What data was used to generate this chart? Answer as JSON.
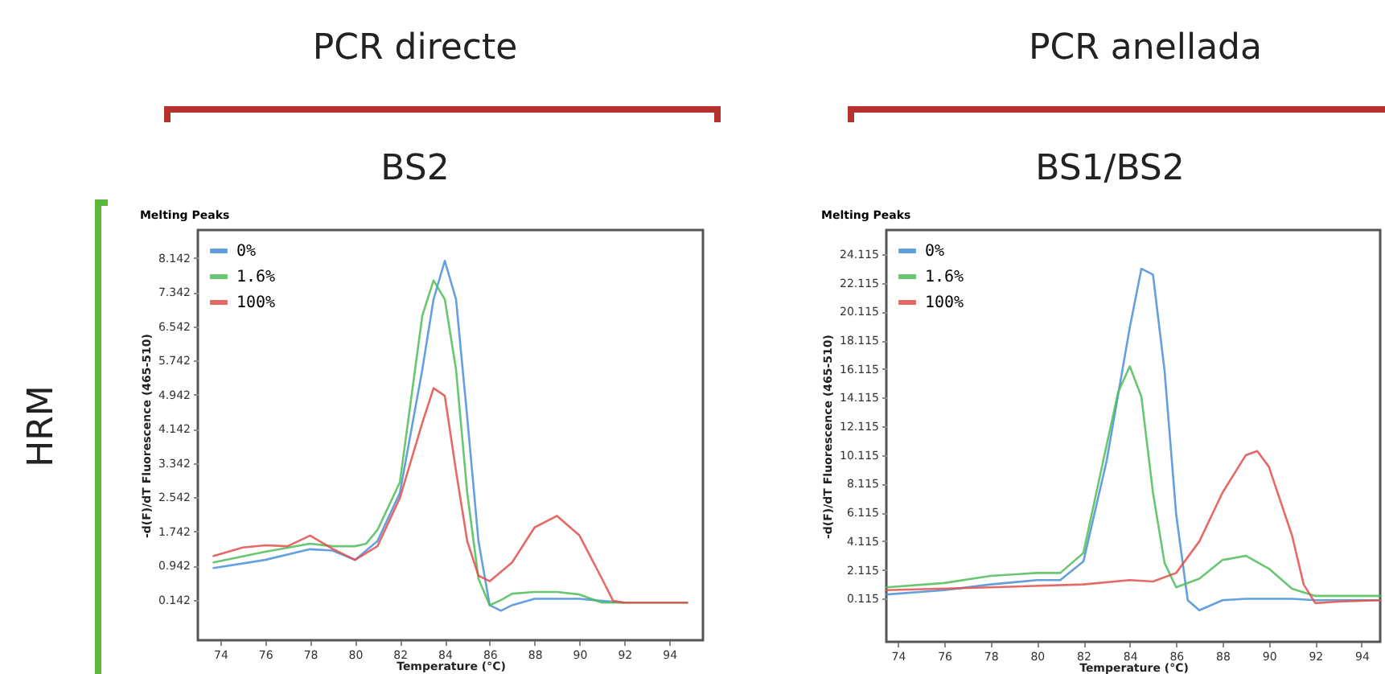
{
  "chart_data": [
    {
      "type": "line",
      "title": "Melting Peaks",
      "xlabel": "Temperature (°C)",
      "ylabel": "-d(F)/dT Fluorescence (465-510)",
      "annotations": [
        "PCR directe",
        "BS2",
        "HRM"
      ],
      "xlim": [
        73,
        95.5
      ],
      "ylim": [
        -0.8,
        8.8
      ],
      "xticks": [
        74,
        76,
        78,
        80,
        82,
        84,
        86,
        88,
        90,
        92,
        94
      ],
      "yticks": [
        0.142,
        0.942,
        1.742,
        2.542,
        3.342,
        4.142,
        4.942,
        5.742,
        6.542,
        7.342,
        8.142
      ],
      "legend": "top left",
      "series": [
        {
          "name": "0%",
          "color": "#4a8fd8",
          "x": [
            73.7,
            76,
            78,
            79,
            80,
            81,
            82,
            83,
            83.5,
            84,
            84.5,
            85,
            85.5,
            86,
            86.5,
            87,
            88,
            89,
            90,
            91,
            92
          ],
          "values": [
            0.89,
            1.08,
            1.33,
            1.3,
            1.08,
            1.52,
            2.65,
            5.54,
            7.18,
            8.08,
            7.18,
            4.41,
            1.52,
            0.02,
            -0.11,
            0.02,
            0.17,
            0.17,
            0.17,
            0.12,
            0.08
          ]
        },
        {
          "name": "1.6%",
          "color": "#4dbd57",
          "x": [
            73.7,
            76,
            78,
            79,
            80,
            80.5,
            81,
            82,
            83,
            83.5,
            84,
            84.5,
            85,
            85.5,
            86,
            86.5,
            87,
            88,
            89,
            90,
            91,
            92,
            94.8
          ],
          "values": [
            1.02,
            1.27,
            1.46,
            1.4,
            1.4,
            1.46,
            1.78,
            2.9,
            6.8,
            7.62,
            7.18,
            5.54,
            2.65,
            0.64,
            0.02,
            0.14,
            0.29,
            0.33,
            0.33,
            0.27,
            0.08,
            0.08,
            0.08
          ]
        },
        {
          "name": "100%",
          "color": "#e0504c",
          "x": [
            73.7,
            75,
            76,
            77,
            78,
            79,
            80,
            81,
            82,
            83,
            83.5,
            84,
            84.5,
            85,
            85.5,
            86,
            87,
            88,
            89,
            90,
            91,
            91.5,
            92,
            94.8
          ],
          "values": [
            1.17,
            1.37,
            1.42,
            1.4,
            1.65,
            1.34,
            1.08,
            1.4,
            2.53,
            4.29,
            5.1,
            4.92,
            3.16,
            1.52,
            0.71,
            0.58,
            1.02,
            1.84,
            2.11,
            1.65,
            0.64,
            0.12,
            0.08,
            0.08
          ]
        }
      ]
    },
    {
      "type": "line",
      "title": "Melting Peaks",
      "xlabel": "Temperature (°C)",
      "ylabel": "-d(F)/dT Fluorescence (465-510)",
      "annotations": [
        "PCR anellada",
        "BS1/BS2"
      ],
      "xlim": [
        73.5,
        94.8
      ],
      "ylim": [
        -2.9,
        25.8
      ],
      "xticks": [
        74,
        76,
        78,
        80,
        82,
        84,
        86,
        88,
        90,
        92,
        94
      ],
      "yticks": [
        0.115,
        2.115,
        4.115,
        6.115,
        8.115,
        10.115,
        12.115,
        14.115,
        16.115,
        18.115,
        20.115,
        22.115,
        24.115
      ],
      "legend": "top left",
      "series": [
        {
          "name": "0%",
          "color": "#4a8fd8",
          "x": [
            73.5,
            76,
            78,
            80,
            81,
            82,
            83,
            84,
            84.5,
            85,
            85.5,
            86,
            86.5,
            87,
            88,
            89,
            90,
            91,
            92,
            94.8
          ],
          "values": [
            0.4,
            0.7,
            1.1,
            1.4,
            1.4,
            2.7,
            9.7,
            19.0,
            23.1,
            22.7,
            16.0,
            6.0,
            0.0,
            -0.7,
            0.0,
            0.1,
            0.1,
            0.1,
            0.0,
            0.0
          ]
        },
        {
          "name": "1.6%",
          "color": "#4dbd57",
          "x": [
            73.5,
            76,
            78,
            80,
            81,
            82,
            83,
            83.5,
            84,
            84.5,
            85,
            85.5,
            86,
            87,
            88,
            89,
            90,
            91,
            92,
            94.8
          ],
          "values": [
            0.9,
            1.2,
            1.7,
            1.9,
            1.9,
            3.3,
            10.8,
            14.5,
            16.3,
            14.2,
            7.5,
            2.6,
            0.9,
            1.5,
            2.8,
            3.1,
            2.2,
            0.8,
            0.3,
            0.3
          ]
        },
        {
          "name": "100%",
          "color": "#e0504c",
          "x": [
            73.5,
            78,
            82,
            84,
            85,
            86,
            87,
            88,
            89,
            89.5,
            90,
            91,
            91.5,
            92,
            93,
            94.8
          ],
          "values": [
            0.7,
            0.9,
            1.1,
            1.4,
            1.3,
            1.9,
            4.1,
            7.5,
            10.1,
            10.4,
            9.3,
            4.5,
            1.1,
            -0.2,
            -0.1,
            0.0
          ]
        }
      ]
    }
  ]
}
